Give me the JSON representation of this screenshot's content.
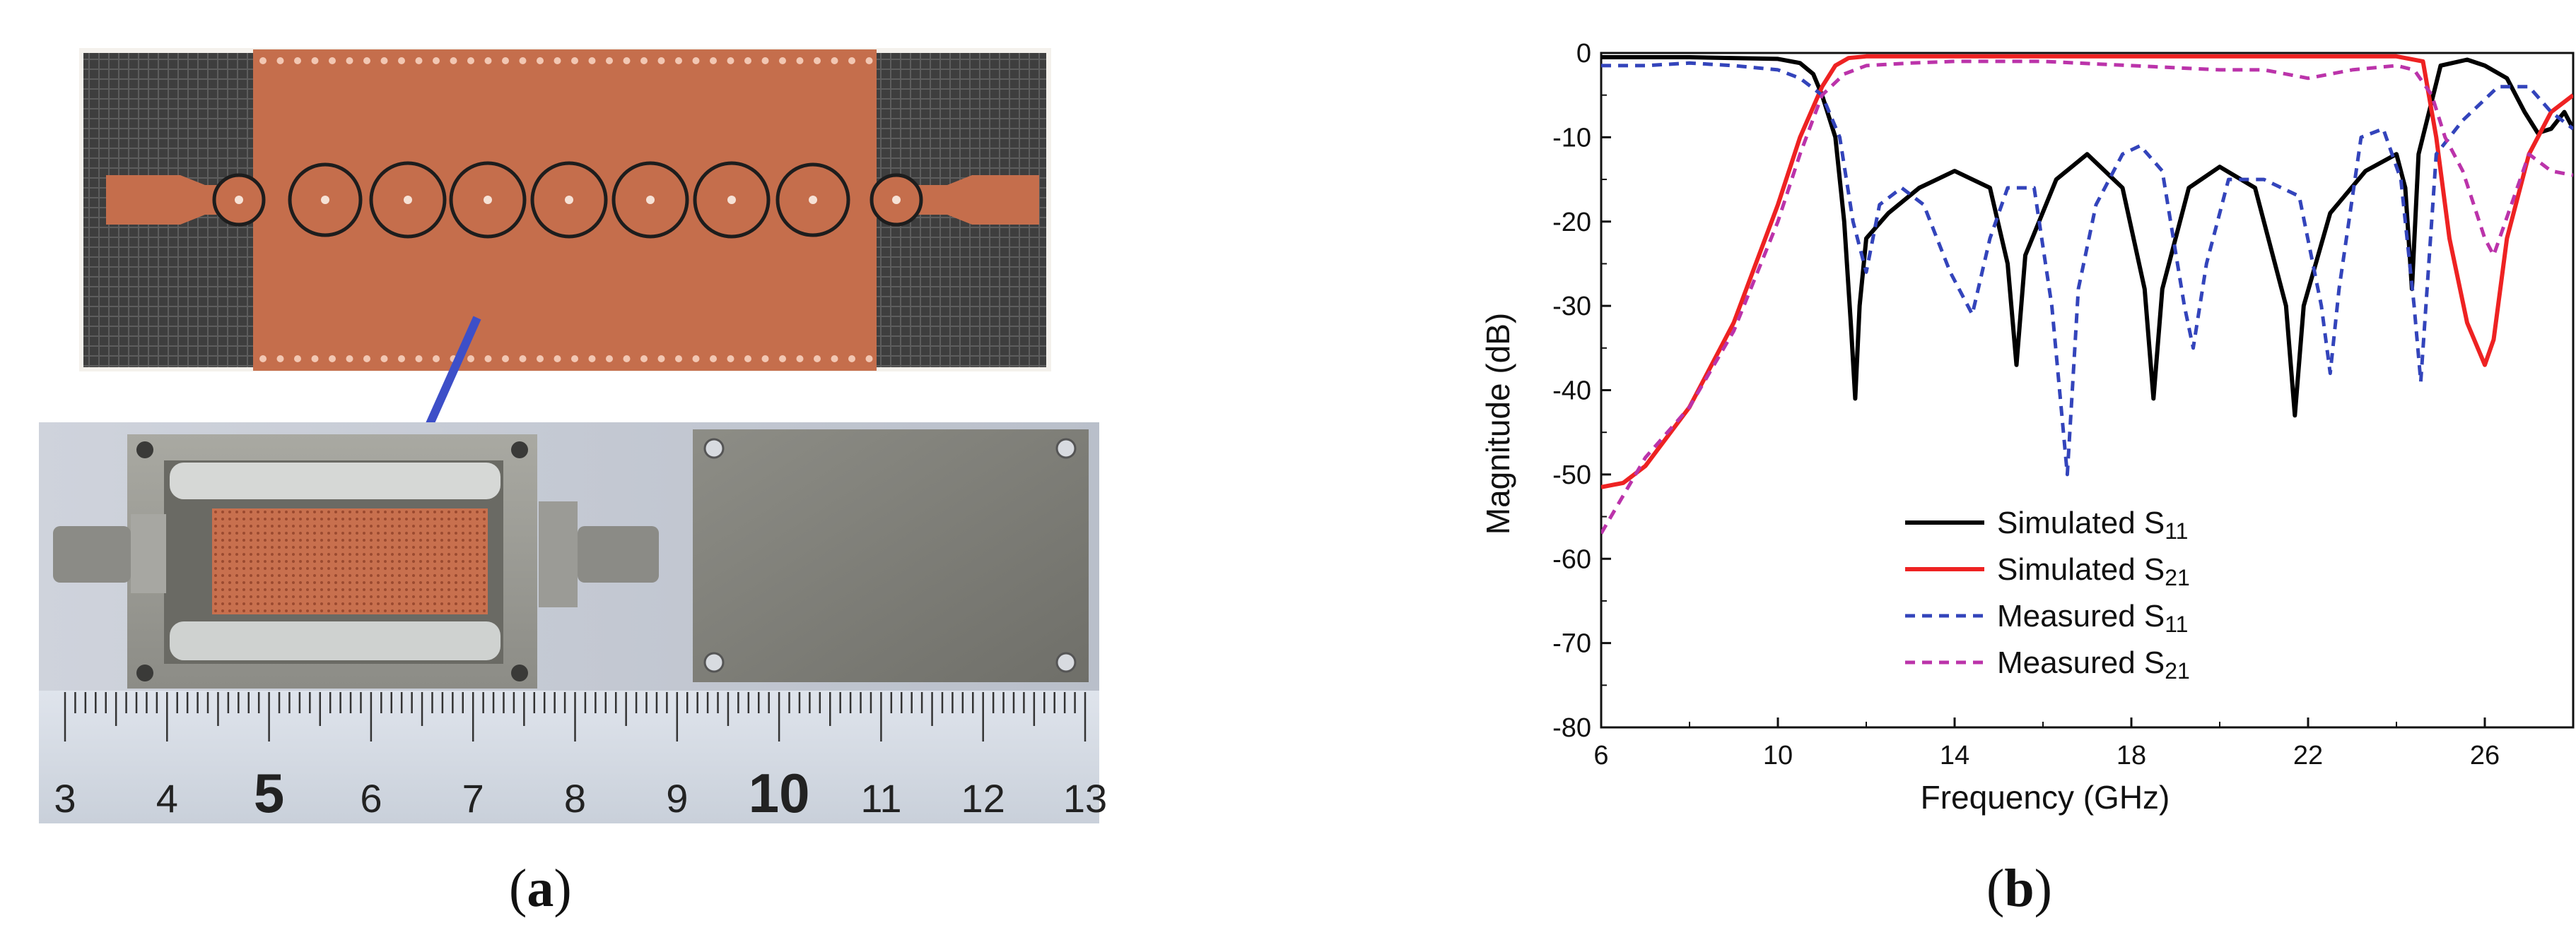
{
  "panel_a": {
    "caption_letter": "a",
    "ruler_numbers": [
      "3",
      "4",
      "5",
      "6",
      "7",
      "8",
      "9",
      "10",
      "11",
      "12",
      "13"
    ]
  },
  "panel_b": {
    "caption_letter": "b"
  },
  "colors": {
    "board_copper": "#c8704e",
    "board_grid": "#5a5a5a",
    "housing": "#9a9a94",
    "arrow": "#3d4fc8",
    "sim_s11": "#000000",
    "sim_s21": "#ee2222",
    "meas_s11": "#3344bb",
    "meas_s21": "#bb33aa"
  },
  "chart_data": {
    "type": "line",
    "xlabel": "Frequency (GHz)",
    "ylabel": "Magnitude (dB)",
    "xlim": [
      6,
      28
    ],
    "ylim": [
      -80,
      0
    ],
    "xticks": [
      "6",
      "10",
      "14",
      "18",
      "22",
      "26"
    ],
    "yticks": [
      "0",
      "-10",
      "-20",
      "-30",
      "-40",
      "-50",
      "-60",
      "-70",
      "-80"
    ],
    "legend_position": "lower-center",
    "grid": false,
    "series": [
      {
        "name": "Simulated S11",
        "legend_main": "Simulated S",
        "legend_sub": "11",
        "style": "solid",
        "color": "#000000",
        "x": [
          6,
          8,
          10,
          10.5,
          10.8,
          11.0,
          11.3,
          11.5,
          11.65,
          11.75,
          11.85,
          12.0,
          12.5,
          13.2,
          14.0,
          14.8,
          15.2,
          15.4,
          15.6,
          16.3,
          17.0,
          17.8,
          18.3,
          18.5,
          18.7,
          19.3,
          20.0,
          20.8,
          21.5,
          21.7,
          21.9,
          22.5,
          23.3,
          24.0,
          24.2,
          24.35,
          24.5,
          25.0,
          25.6,
          26.0,
          26.5,
          26.9,
          27.2,
          27.5,
          27.8,
          28
        ],
        "y": [
          -0.5,
          -0.5,
          -0.7,
          -1.2,
          -2.5,
          -5,
          -10,
          -20,
          -32,
          -41,
          -30,
          -22,
          -19,
          -16,
          -14,
          -16,
          -25,
          -37,
          -24,
          -15,
          -12,
          -16,
          -28,
          -41,
          -28,
          -16,
          -13.5,
          -16,
          -30,
          -43,
          -30,
          -19,
          -14,
          -12,
          -16,
          -28,
          -12,
          -1.5,
          -0.8,
          -1.5,
          -3,
          -7,
          -9.5,
          -9,
          -7,
          -9
        ]
      },
      {
        "name": "Simulated S21",
        "legend_main": "Simulated S",
        "legend_sub": "21",
        "style": "solid",
        "color": "#ee2222",
        "x": [
          6,
          6.5,
          7,
          8,
          9,
          10,
          10.5,
          11,
          11.3,
          11.6,
          12,
          14,
          18,
          22,
          24,
          24.6,
          24.9,
          25.2,
          25.6,
          26.0,
          26.2,
          26.5,
          27.0,
          27.5,
          28
        ],
        "y": [
          -51.5,
          -51,
          -49,
          -42,
          -32,
          -18,
          -10,
          -4,
          -1.5,
          -0.6,
          -0.4,
          -0.4,
          -0.4,
          -0.4,
          -0.4,
          -1,
          -10,
          -22,
          -32,
          -37,
          -34,
          -22,
          -12,
          -7,
          -5
        ]
      },
      {
        "name": "Measured S11",
        "legend_main": "Measured S",
        "legend_sub": "11",
        "style": "dashed",
        "color": "#3344bb",
        "x": [
          6,
          7,
          8,
          9,
          10,
          10.5,
          11,
          11.4,
          11.7,
          12.0,
          12.3,
          12.8,
          13.3,
          13.9,
          14.4,
          14.8,
          15.2,
          15.8,
          16.2,
          16.55,
          16.8,
          17.2,
          17.8,
          18.2,
          18.7,
          19.2,
          19.4,
          19.7,
          20.2,
          21.0,
          21.8,
          22.3,
          22.5,
          22.7,
          23.2,
          23.7,
          24.1,
          24.4,
          24.55,
          24.9,
          25.5,
          26.3,
          27.0,
          27.5,
          28
        ],
        "y": [
          -1.5,
          -1.5,
          -1.2,
          -1.5,
          -2.0,
          -3.0,
          -5.0,
          -10,
          -20,
          -26,
          -18,
          -16,
          -18,
          -26,
          -31,
          -22,
          -16,
          -16,
          -30,
          -50,
          -28,
          -18,
          -12,
          -11,
          -14,
          -30,
          -35,
          -25,
          -15,
          -15,
          -17,
          -30,
          -38,
          -28,
          -10,
          -9,
          -15,
          -30,
          -39,
          -12,
          -8,
          -4,
          -4,
          -7,
          -9
        ]
      },
      {
        "name": "Measured S21",
        "legend_main": "Measured S",
        "legend_sub": "21",
        "style": "dashed",
        "color": "#bb33aa",
        "x": [
          6,
          7,
          8,
          9,
          10,
          10.5,
          11,
          11.5,
          12,
          13,
          14,
          16,
          18,
          20,
          21,
          22,
          23,
          24,
          24.4,
          24.8,
          25.1,
          25.5,
          26.0,
          26.2,
          26.6,
          27.0,
          27.5,
          28
        ],
        "y": [
          -57,
          -48,
          -42,
          -33,
          -20,
          -12,
          -5,
          -2.5,
          -1.5,
          -1.2,
          -1.0,
          -1.0,
          -1.5,
          -2.0,
          -2.0,
          -3.0,
          -2.0,
          -1.5,
          -2.0,
          -5.0,
          -10.0,
          -14.0,
          -22.0,
          -24.0,
          -18.0,
          -12.0,
          -14.0,
          -14.5
        ]
      }
    ]
  }
}
